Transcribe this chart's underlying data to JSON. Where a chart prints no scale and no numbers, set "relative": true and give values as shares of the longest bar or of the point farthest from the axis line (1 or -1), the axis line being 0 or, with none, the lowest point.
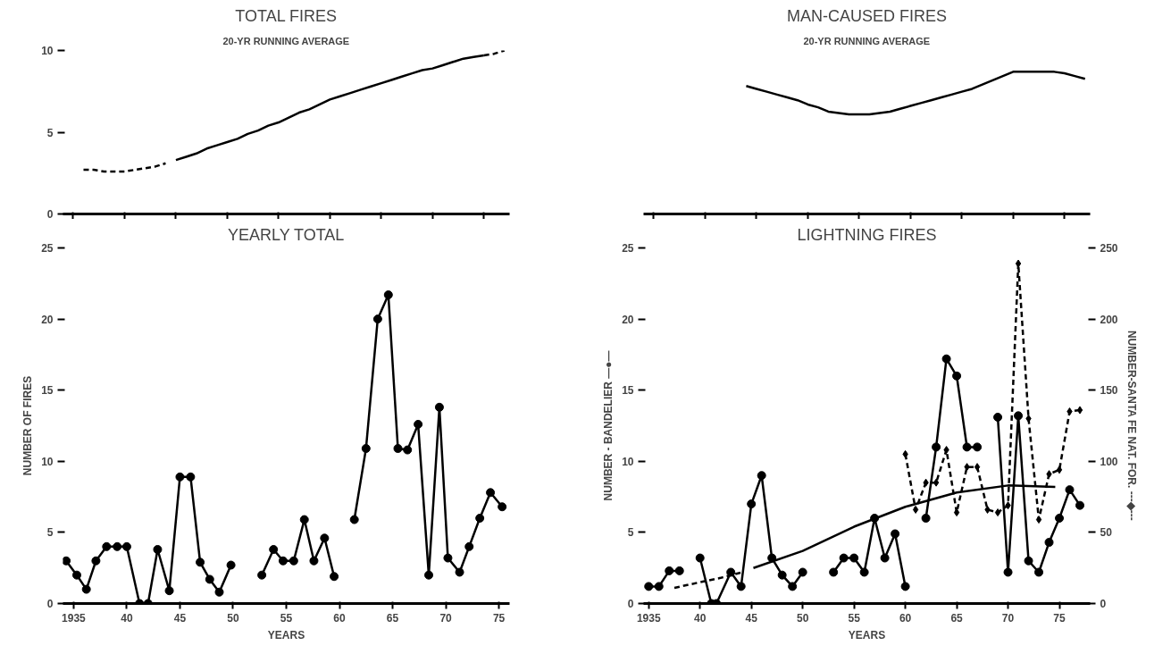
{
  "chart_data": [
    {
      "type": "line",
      "title": "TOTAL FIRES",
      "subtitle": "20-YR RUNNING AVERAGE",
      "ylim": [
        0,
        10
      ],
      "yticks": [
        0,
        5,
        10
      ],
      "tick_labels": "y",
      "categories": [
        null,
        null,
        null,
        null,
        null,
        null,
        null,
        null,
        null,
        null,
        null,
        null,
        null,
        null,
        null,
        null,
        null,
        null,
        null,
        null,
        null,
        null,
        null,
        null,
        null,
        null,
        null,
        null,
        null,
        null,
        null,
        null,
        null,
        null,
        null,
        null,
        null,
        null,
        null,
        null,
        null,
        null,
        null
      ],
      "series": [
        {
          "color": "#000000",
          "line_style": "dashed",
          "marker": "none",
          "values": [
            null,
            2.7,
            2.7,
            2.6,
            2.6,
            2.6,
            2.7,
            2.8,
            2.9,
            3.1,
            null,
            null,
            null,
            null,
            null,
            null,
            null,
            null,
            null,
            null,
            null,
            null,
            null,
            null,
            null,
            null,
            null,
            null,
            null,
            null,
            null,
            null,
            null,
            null,
            null,
            null,
            null,
            null,
            null,
            null,
            null,
            null,
            null
          ]
        },
        {
          "color": "#000000",
          "line_style": "solid",
          "marker": "none",
          "values": [
            null,
            null,
            null,
            null,
            null,
            null,
            null,
            null,
            null,
            null,
            3.3,
            3.5,
            3.7,
            4.0,
            4.2,
            4.4,
            4.6,
            4.9,
            5.1,
            5.4,
            5.6,
            5.9,
            6.2,
            6.4,
            6.7,
            7.0,
            7.2,
            7.4,
            7.6,
            7.8,
            8.0,
            8.2,
            8.4,
            8.6,
            8.8,
            8.9,
            9.1,
            9.3,
            9.5,
            9.6,
            9.7,
            null,
            null
          ]
        },
        {
          "color": "#000000",
          "line_style": "dashed",
          "marker": "none",
          "values": [
            null,
            null,
            null,
            null,
            null,
            null,
            null,
            null,
            null,
            null,
            null,
            null,
            null,
            null,
            null,
            null,
            null,
            null,
            null,
            null,
            null,
            null,
            null,
            null,
            null,
            null,
            null,
            null,
            null,
            null,
            null,
            null,
            null,
            null,
            null,
            null,
            null,
            null,
            null,
            null,
            9.7,
            9.8,
            10.0
          ]
        }
      ]
    },
    {
      "type": "line",
      "title": "MAN-CAUSED FIRES",
      "subtitle": "20-YR RUNNING AVERAGE",
      "relative": true,
      "tick_labels": false,
      "categories": [
        null,
        null,
        null,
        null,
        null,
        null,
        null,
        null,
        null,
        null,
        null,
        null,
        null,
        null,
        null,
        null,
        null,
        null,
        null,
        null,
        null,
        null,
        null,
        null,
        null,
        null,
        null,
        null,
        null,
        null,
        null,
        null,
        null,
        null,
        null,
        null,
        null,
        null,
        null,
        null,
        null,
        null,
        null
      ],
      "series": [
        {
          "color": "#000000",
          "line_style": "solid",
          "marker": "none",
          "values": [
            null,
            null,
            null,
            null,
            null,
            null,
            null,
            null,
            null,
            0.9,
            0.88,
            0.86,
            0.84,
            0.82,
            0.8,
            0.77,
            0.75,
            0.72,
            0.71,
            0.7,
            0.7,
            0.7,
            0.71,
            0.72,
            0.74,
            0.76,
            0.78,
            0.8,
            0.82,
            0.84,
            0.86,
            0.88,
            0.91,
            0.94,
            0.97,
            1.0,
            1.0,
            1.0,
            1.0,
            1.0,
            0.99,
            0.97,
            0.95
          ]
        }
      ]
    },
    {
      "type": "line",
      "title": "YEARLY TOTAL",
      "xlabel": "YEARS",
      "ylabel": "NUMBER OF FIRES",
      "xlim": [
        1934,
        1976
      ],
      "ylim": [
        0,
        25
      ],
      "xticks": [
        {
          "value": 1935,
          "label": "1935"
        },
        {
          "value": 1940,
          "label": "40"
        },
        {
          "value": 1945,
          "label": "45"
        },
        {
          "value": 1950,
          "label": "50"
        },
        {
          "value": 1955,
          "label": "55"
        },
        {
          "value": 1960,
          "label": "60"
        },
        {
          "value": 1965,
          "label": "65"
        },
        {
          "value": 1970,
          "label": "70"
        },
        {
          "value": 1975,
          "label": "75"
        }
      ],
      "yticks": [
        0,
        5,
        10,
        15,
        20,
        25
      ],
      "series": [
        {
          "color": "#000000",
          "line_style": "solid",
          "marker": "circle",
          "x": [
            1934.3,
            1935.3,
            1936.2,
            1937.1,
            1938.1,
            1939.1,
            1940,
            1941.2,
            1942,
            1942.9,
            1944,
            1945,
            1946,
            1946.9,
            1947.8,
            1948.7,
            1949.8,
            1951,
            1952.7,
            1953.8,
            1954.7,
            1955.7,
            1956.7,
            1957.6,
            1958.6,
            1959.5,
            1960.5,
            1961.4,
            1962.5,
            1963.6,
            1964.6,
            1965.5,
            1966.4,
            1967.4,
            1968.4,
            1969.4,
            1970.2,
            1971.3,
            1972.2,
            1973.2,
            1974.2,
            1975.3
          ],
          "values": [
            3.0,
            2.0,
            1.0,
            3.0,
            4.0,
            4.0,
            4.0,
            0,
            0,
            3.8,
            0.9,
            8.9,
            8.9,
            2.9,
            1.7,
            0.8,
            2.7,
            null,
            2.0,
            3.8,
            3.0,
            3.0,
            5.9,
            3.0,
            4.6,
            1.9,
            null,
            5.9,
            10.9,
            20.0,
            21.7,
            10.9,
            10.8,
            12.6,
            2.0,
            13.8,
            3.2,
            2.2,
            4.0,
            6.0,
            7.8,
            6.8
          ]
        }
      ]
    },
    {
      "type": "line",
      "title": "LIGHTNING FIRES",
      "xlabel": "YEARS",
      "ylabel": "NUMBER - BANDELIER —●—",
      "y2label": "NUMBER-SANTA FE NAT. FOR. ---◆---",
      "xlim": [
        1934.5,
        1978
      ],
      "ylim": [
        0,
        25
      ],
      "y2lim": [
        0,
        250
      ],
      "xticks": [
        {
          "value": 1935,
          "label": "1935"
        },
        {
          "value": 1940,
          "label": "40"
        },
        {
          "value": 1945,
          "label": "45"
        },
        {
          "value": 1950,
          "label": "50"
        },
        {
          "value": 1955,
          "label": "55"
        },
        {
          "value": 1960,
          "label": "60"
        },
        {
          "value": 1965,
          "label": "65"
        },
        {
          "value": 1970,
          "label": "70"
        },
        {
          "value": 1975,
          "label": "75"
        }
      ],
      "yticks": [
        0,
        5,
        10,
        15,
        20,
        25
      ],
      "y2ticks": [
        0,
        50,
        100,
        150,
        200,
        250
      ],
      "series": [
        {
          "color": "#000000",
          "line_style": "solid",
          "marker": "circle",
          "x": [
            1935,
            1936,
            1937,
            1938,
            1939,
            1940,
            1941.1,
            1941.6,
            1943,
            1944,
            1945,
            1946,
            1947,
            1948,
            1949,
            1950,
            1951,
            1953,
            1954,
            1955,
            1956,
            1957,
            1958,
            1959,
            1960,
            1961,
            1962,
            1963,
            1964,
            1965,
            1966,
            1967,
            1968,
            1969,
            1970,
            1971,
            1972,
            1973,
            1974,
            1975,
            1976,
            1977
          ],
          "values": [
            1.2,
            1.2,
            2.3,
            2.3,
            null,
            3.2,
            0,
            0,
            2.2,
            1.2,
            7.0,
            9.0,
            3.2,
            2.0,
            1.2,
            2.2,
            null,
            2.2,
            3.2,
            3.2,
            2.2,
            6.0,
            3.2,
            4.9,
            1.2,
            null,
            6.0,
            11.0,
            17.2,
            16.0,
            11.0,
            11.0,
            null,
            13.1,
            2.2,
            13.2,
            3.0,
            2.2,
            4.3,
            6.0,
            8.0,
            6.9
          ]
        },
        {
          "color": "#000000",
          "line_style": "dashed",
          "marker": "diamond",
          "axis": "y2",
          "x": [
            1960,
            1961,
            1962,
            1963,
            1964,
            1965,
            1966,
            1967,
            1968,
            1969,
            1970,
            1971,
            1972,
            1973,
            1974,
            1975,
            1976,
            1977
          ],
          "values": [
            105,
            66,
            85,
            85,
            108,
            64,
            96,
            96,
            66,
            64,
            69,
            239,
            130,
            59,
            91,
            94,
            135,
            136
          ]
        },
        {
          "color": "#000000",
          "line_style": "dashed",
          "marker": "none",
          "x": [
            1937.5,
            1940,
            1942,
            1944.1
          ],
          "values": [
            1.1,
            1.5,
            1.8,
            2.2
          ]
        },
        {
          "color": "#000000",
          "line_style": "solid",
          "marker": "none",
          "x": [
            1945.2,
            1950,
            1955,
            1960,
            1965,
            1970,
            1974.6
          ],
          "values": [
            2.5,
            3.7,
            5.4,
            6.8,
            7.8,
            8.3,
            8.2
          ]
        }
      ]
    }
  ]
}
